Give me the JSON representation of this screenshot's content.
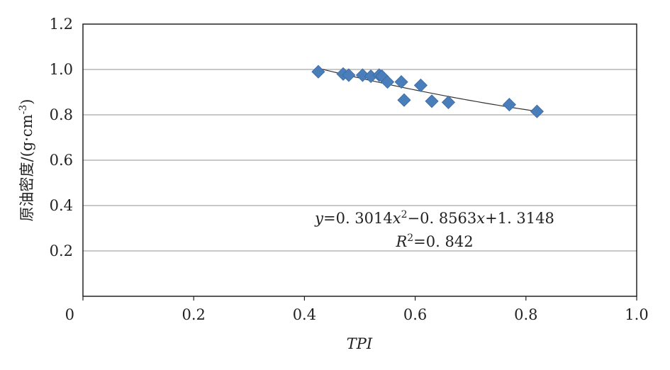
{
  "chart_data": {
    "type": "scatter",
    "xlabel": "TPI",
    "ylabel": "原油密度/(g·cm",
    "ylabel_sup": "-3",
    "ylabel_close": ")",
    "xlim": [
      0,
      1.0
    ],
    "ylim": [
      0,
      1.2
    ],
    "x_ticks": [
      "0",
      "0.2",
      "0.4",
      "0.6",
      "0.8",
      "1.0"
    ],
    "y_ticks": [
      "0.2",
      "0.4",
      "0.6",
      "0.8",
      "1.0",
      "1.2"
    ],
    "grid": "horizontal",
    "marker": "diamond",
    "marker_color": "#4a7ebb",
    "series": [
      {
        "points": [
          [
            0.425,
            0.99
          ],
          [
            0.47,
            0.98
          ],
          [
            0.48,
            0.975
          ],
          [
            0.505,
            0.975
          ],
          [
            0.52,
            0.97
          ],
          [
            0.535,
            0.975
          ],
          [
            0.54,
            0.97
          ],
          [
            0.55,
            0.945
          ],
          [
            0.575,
            0.945
          ],
          [
            0.58,
            0.865
          ],
          [
            0.61,
            0.93
          ],
          [
            0.63,
            0.86
          ],
          [
            0.66,
            0.855
          ],
          [
            0.77,
            0.845
          ],
          [
            0.82,
            0.815
          ]
        ]
      }
    ],
    "trendline": {
      "coefficients": [
        0.3014,
        -0.8563,
        1.3148
      ],
      "x_range": [
        0.425,
        0.82
      ],
      "equation": {
        "y": "y",
        "eq1": "=0. 3014",
        "x1": "x",
        "sup1": "2",
        "eq2": "−0. 8563",
        "x2": "x",
        "eq3": "+1. 3148"
      },
      "r2": {
        "R": "R",
        "sup": "2",
        "value": "=0. 842"
      }
    }
  }
}
